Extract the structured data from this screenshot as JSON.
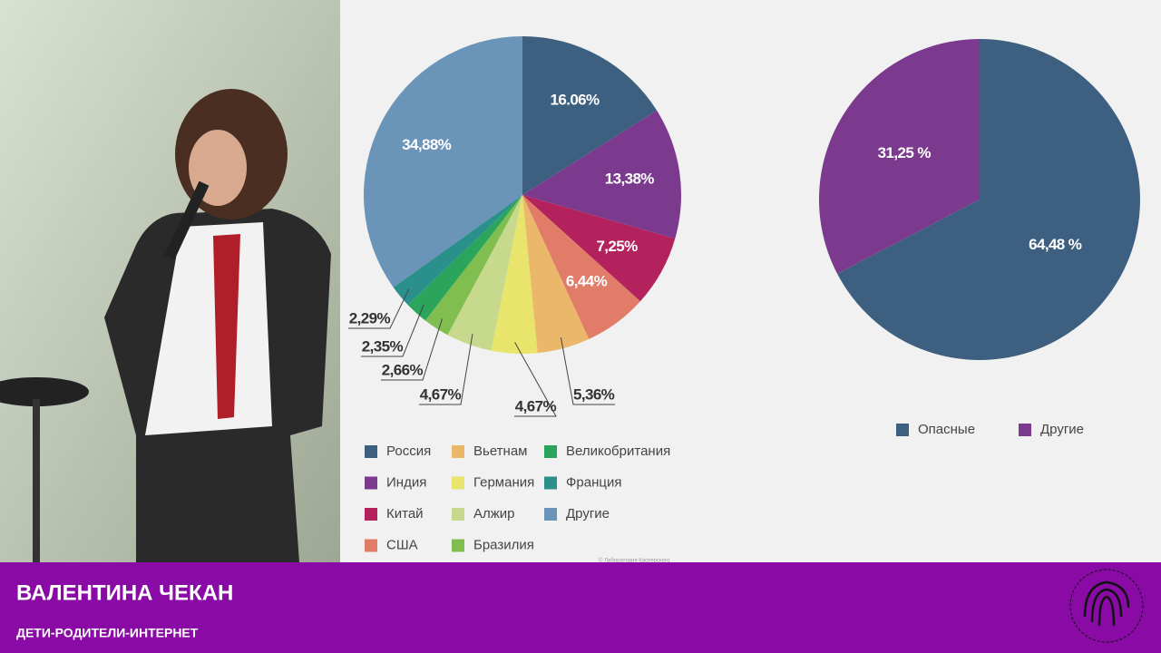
{
  "chart_data": [
    {
      "type": "pie",
      "categories": [
        "Россия",
        "Индия",
        "Китай",
        "США",
        "Вьетнам",
        "Германия",
        "Алжир",
        "Бразилия",
        "Великобритания",
        "Франция",
        "Другие"
      ],
      "values": [
        16.06,
        13.38,
        7.25,
        6.44,
        5.36,
        4.67,
        4.67,
        2.66,
        2.35,
        2.29,
        34.88
      ],
      "value_labels": [
        "16.06%",
        "13,38%",
        "7,25%",
        "6,44%",
        "5,36%",
        "4,67%",
        "4,67%",
        "2,66%",
        "2,35%",
        "2,29%",
        "34,88%"
      ],
      "colors": [
        "#3e6080",
        "#7c3a8f",
        "#b3225c",
        "#e07c68",
        "#ebb86b",
        "#e9e46c",
        "#c6d98c",
        "#80be50",
        "#2ba45c",
        "#2b908b",
        "#6b94b9"
      ],
      "source": "© Лаборатория Касперского"
    },
    {
      "type": "pie",
      "categories": [
        "Опасные",
        "Другие"
      ],
      "values": [
        64.48,
        31.25
      ],
      "value_labels": [
        "64,48 %",
        "31,25 %"
      ],
      "colors": [
        "#3e6080",
        "#7c3a8f"
      ]
    }
  ],
  "caption": {
    "name": "ВАЛЕНТИНА ЧЕКАН",
    "subtitle": "ДЕТИ-РОДИТЕЛИ-ИНТЕРНЕТ"
  }
}
